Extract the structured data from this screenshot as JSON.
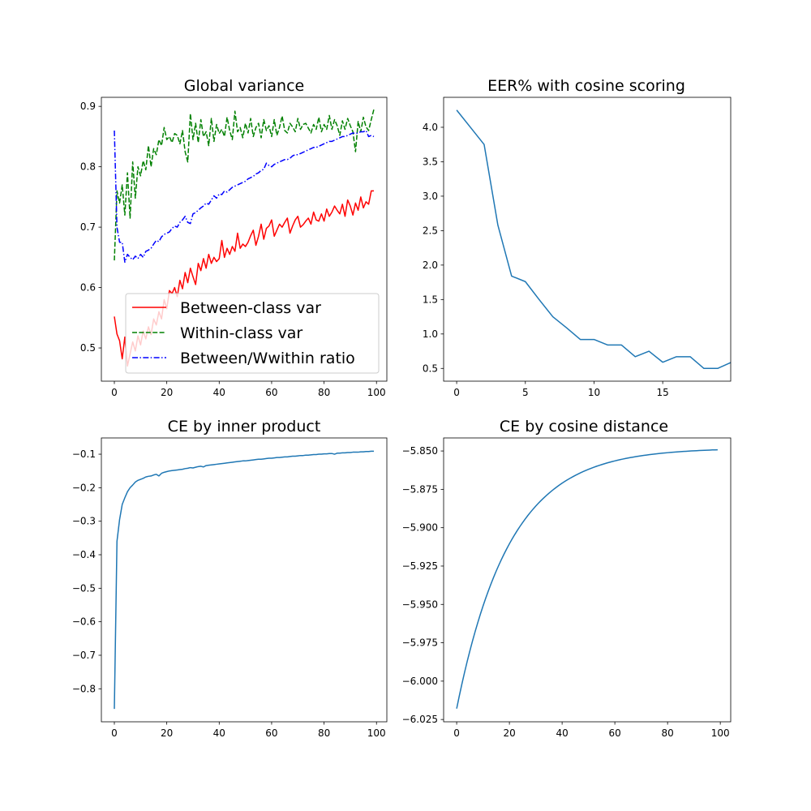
{
  "figure": {
    "background": "#ffffff"
  },
  "chart_data": [
    {
      "type": "line",
      "title": "Global variance",
      "xlabel": "",
      "ylabel": "",
      "xlim": [
        -4.95,
        103.95
      ],
      "ylim": [
        0.445,
        0.915
      ],
      "xticks": [
        0,
        20,
        40,
        60,
        80,
        100
      ],
      "yticks": [
        0.5,
        0.6,
        0.7,
        0.8,
        0.9
      ],
      "grid": false,
      "legend_position": "lower-right",
      "series": [
        {
          "name": "Between-class var",
          "color": "#ff0000",
          "linestyle": "solid",
          "x_start": 0,
          "values": [
            0.552,
            0.523,
            0.512,
            0.482,
            0.518,
            0.47,
            0.49,
            0.51,
            0.495,
            0.52,
            0.505,
            0.528,
            0.515,
            0.535,
            0.522,
            0.548,
            0.538,
            0.56,
            0.548,
            0.58,
            0.565,
            0.595,
            0.59,
            0.6,
            0.585,
            0.612,
            0.598,
            0.625,
            0.608,
            0.632,
            0.618,
            0.605,
            0.64,
            0.628,
            0.648,
            0.632,
            0.655,
            0.64,
            0.65,
            0.643,
            0.648,
            0.678,
            0.65,
            0.665,
            0.655,
            0.668,
            0.66,
            0.69,
            0.665,
            0.672,
            0.668,
            0.675,
            0.686,
            0.695,
            0.67,
            0.685,
            0.705,
            0.68,
            0.698,
            0.702,
            0.712,
            0.685,
            0.695,
            0.705,
            0.7,
            0.708,
            0.715,
            0.69,
            0.702,
            0.712,
            0.718,
            0.7,
            0.704,
            0.71,
            0.715,
            0.705,
            0.725,
            0.712,
            0.71,
            0.722,
            0.71,
            0.73,
            0.718,
            0.725,
            0.735,
            0.728,
            0.722,
            0.738,
            0.718,
            0.745,
            0.735,
            0.72,
            0.74,
            0.728,
            0.75,
            0.732,
            0.742,
            0.738,
            0.76,
            0.76
          ]
        },
        {
          "name": "Within-class var",
          "color": "#008000",
          "linestyle": "dashed",
          "x_start": 0,
          "values": [
            0.645,
            0.76,
            0.74,
            0.77,
            0.72,
            0.79,
            0.715,
            0.808,
            0.748,
            0.8,
            0.785,
            0.81,
            0.795,
            0.835,
            0.8,
            0.83,
            0.82,
            0.845,
            0.835,
            0.865,
            0.845,
            0.85,
            0.84,
            0.855,
            0.852,
            0.838,
            0.86,
            0.825,
            0.808,
            0.888,
            0.845,
            0.872,
            0.84,
            0.878,
            0.85,
            0.858,
            0.835,
            0.88,
            0.842,
            0.87,
            0.855,
            0.862,
            0.85,
            0.882,
            0.86,
            0.845,
            0.892,
            0.858,
            0.865,
            0.848,
            0.872,
            0.856,
            0.88,
            0.85,
            0.865,
            0.872,
            0.848,
            0.878,
            0.86,
            0.868,
            0.85,
            0.878,
            0.852,
            0.865,
            0.884,
            0.86,
            0.856,
            0.872,
            0.866,
            0.858,
            0.88,
            0.862,
            0.87,
            0.872,
            0.864,
            0.856,
            0.87,
            0.862,
            0.882,
            0.858,
            0.87,
            0.862,
            0.885,
            0.862,
            0.878,
            0.868,
            0.852,
            0.876,
            0.862,
            0.88,
            0.868,
            0.858,
            0.825,
            0.875,
            0.858,
            0.882,
            0.866,
            0.86,
            0.878,
            0.895
          ]
        },
        {
          "name": "Between/Wwithin ratio",
          "color": "#0000ff",
          "linestyle": "dashdot",
          "x_start": 0,
          "values": [
            0.86,
            0.7,
            0.675,
            0.675,
            0.642,
            0.655,
            0.65,
            0.646,
            0.652,
            0.648,
            0.655,
            0.65,
            0.66,
            0.662,
            0.665,
            0.672,
            0.678,
            0.676,
            0.684,
            0.688,
            0.69,
            0.692,
            0.698,
            0.702,
            0.7,
            0.708,
            0.712,
            0.718,
            0.708,
            0.706,
            0.722,
            0.724,
            0.728,
            0.732,
            0.735,
            0.74,
            0.738,
            0.745,
            0.752,
            0.748,
            0.755,
            0.754,
            0.76,
            0.758,
            0.762,
            0.766,
            0.768,
            0.77,
            0.772,
            0.774,
            0.776,
            0.78,
            0.782,
            0.784,
            0.788,
            0.79,
            0.794,
            0.796,
            0.806,
            0.802,
            0.8,
            0.804,
            0.806,
            0.808,
            0.81,
            0.812,
            0.812,
            0.814,
            0.818,
            0.82,
            0.82,
            0.822,
            0.824,
            0.826,
            0.828,
            0.83,
            0.832,
            0.832,
            0.834,
            0.836,
            0.838,
            0.84,
            0.842,
            0.842,
            0.844,
            0.846,
            0.848,
            0.85,
            0.85,
            0.852,
            0.854,
            0.856,
            0.855,
            0.856,
            0.858,
            0.858,
            0.86,
            0.85,
            0.852,
            0.85
          ]
        }
      ]
    },
    {
      "type": "line",
      "title": "EER% with cosine scoring",
      "xlabel": "",
      "ylabel": "",
      "xlim": [
        -0.95,
        19.95
      ],
      "ylim": [
        0.315,
        4.435
      ],
      "xticks": [
        0,
        5,
        10,
        15
      ],
      "yticks": [
        0.5,
        1.0,
        1.5,
        2.0,
        2.5,
        3.0,
        3.5,
        4.0
      ],
      "ytick_labels": [
        "0.5",
        "1.0",
        "1.5",
        "2.0",
        "2.5",
        "3.0",
        "3.5",
        "4.0"
      ],
      "grid": false,
      "series": [
        {
          "color": "#1f77b4",
          "linestyle": "solid",
          "x_start": 0,
          "values": [
            4.25,
            4.0,
            3.75,
            2.58,
            1.84,
            1.76,
            1.5,
            1.25,
            1.09,
            0.92,
            0.92,
            0.84,
            0.84,
            0.67,
            0.75,
            0.59,
            0.67,
            0.67,
            0.5,
            0.5,
            0.59
          ]
        }
      ]
    },
    {
      "type": "line",
      "title": "CE by inner product",
      "xlabel": "",
      "ylabel": "",
      "xlim": [
        -4.95,
        103.95
      ],
      "ylim": [
        -0.8985,
        -0.0515
      ],
      "xticks": [
        0,
        20,
        40,
        60,
        80,
        100
      ],
      "yticks": [
        -0.8,
        -0.7,
        -0.6,
        -0.5,
        -0.4,
        -0.3,
        -0.2,
        -0.1
      ],
      "ytick_labels": [
        "−0.8",
        "−0.7",
        "−0.6",
        "−0.5",
        "−0.4",
        "−0.3",
        "−0.2",
        "−0.1"
      ],
      "grid": false,
      "series": [
        {
          "color": "#1f77b4",
          "linestyle": "solid",
          "x_start": 0,
          "values": [
            -0.86,
            -0.36,
            -0.295,
            -0.25,
            -0.23,
            -0.212,
            -0.2,
            -0.192,
            -0.183,
            -0.178,
            -0.175,
            -0.172,
            -0.168,
            -0.166,
            -0.165,
            -0.162,
            -0.16,
            -0.165,
            -0.157,
            -0.154,
            -0.152,
            -0.15,
            -0.149,
            -0.148,
            -0.147,
            -0.146,
            -0.145,
            -0.143,
            -0.142,
            -0.14,
            -0.141,
            -0.139,
            -0.137,
            -0.136,
            -0.138,
            -0.134,
            -0.133,
            -0.132,
            -0.131,
            -0.13,
            -0.129,
            -0.128,
            -0.127,
            -0.126,
            -0.125,
            -0.124,
            -0.123,
            -0.122,
            -0.121,
            -0.12,
            -0.12,
            -0.119,
            -0.118,
            -0.117,
            -0.116,
            -0.115,
            -0.115,
            -0.114,
            -0.113,
            -0.112,
            -0.112,
            -0.111,
            -0.11,
            -0.11,
            -0.109,
            -0.108,
            -0.108,
            -0.107,
            -0.106,
            -0.106,
            -0.105,
            -0.104,
            -0.104,
            -0.103,
            -0.103,
            -0.102,
            -0.101,
            -0.101,
            -0.1,
            -0.1,
            -0.099,
            -0.099,
            -0.098,
            -0.098,
            -0.1,
            -0.097,
            -0.097,
            -0.096,
            -0.096,
            -0.095,
            -0.095,
            -0.094,
            -0.094,
            -0.094,
            -0.093,
            -0.093,
            -0.092,
            -0.092,
            -0.091,
            -0.091
          ]
        }
      ]
    },
    {
      "type": "line",
      "title": "CE by cosine distance",
      "xlabel": "",
      "ylabel": "",
      "xlim": [
        -4.95,
        103.95
      ],
      "ylim": [
        -6.0265,
        -5.8415
      ],
      "xticks": [
        0,
        20,
        40,
        60,
        80,
        100
      ],
      "yticks": [
        -6.025,
        -6.0,
        -5.975,
        -5.95,
        -5.925,
        -5.9,
        -5.875,
        -5.85
      ],
      "ytick_labels": [
        "−6.025",
        "−6.000",
        "−5.975",
        "−5.950",
        "−5.925",
        "−5.900",
        "−5.875",
        "−5.850"
      ],
      "grid": false,
      "series": [
        {
          "color": "#1f77b4",
          "linestyle": "solid",
          "x_start": 0,
          "curve": {
            "form": "exponential-approach",
            "start": -6.018,
            "end": -5.848,
            "n_points": 100,
            "rate": 0.05,
            "offset": 0.01
          }
        }
      ]
    }
  ]
}
